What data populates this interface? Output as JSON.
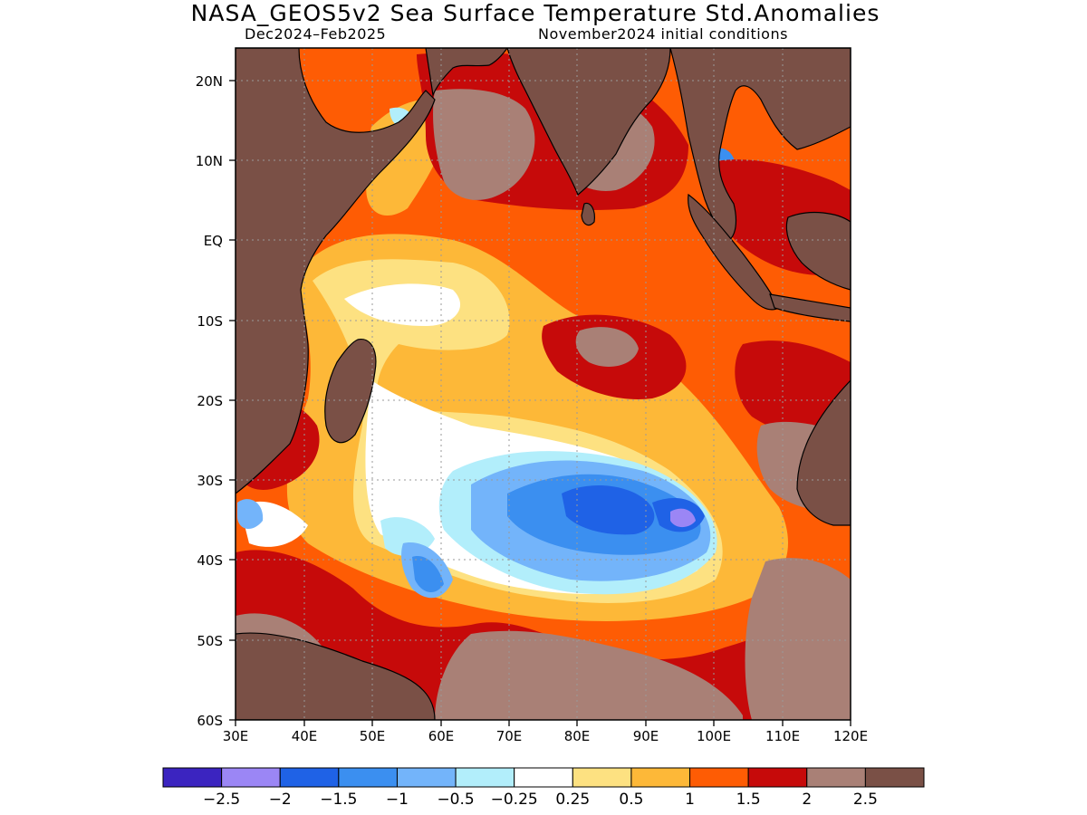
{
  "header": {
    "title": "NASA_GEOS5v2 Sea Surface Temperature Std.Anomalies",
    "period": "Dec2024–Feb2025",
    "init": "November2024 initial conditions"
  },
  "map": {
    "lon_range": [
      30,
      120
    ],
    "lat_range": [
      -60,
      24
    ],
    "lon_ticks": [
      "30E",
      "40E",
      "50E",
      "60E",
      "70E",
      "80E",
      "90E",
      "100E",
      "110E",
      "120E"
    ],
    "lat_ticks": [
      "20N",
      "10N",
      "EQ",
      "10S",
      "20S",
      "30S",
      "40S",
      "50S",
      "60S"
    ],
    "land_color": "#7a5046"
  },
  "colorbar": {
    "colors": [
      "#3b24c0",
      "#9b86f5",
      "#1f62e6",
      "#3b8ff0",
      "#73b4fa",
      "#b2eefb",
      "#ffffff",
      "#fde181",
      "#fdb838",
      "#fe5c04",
      "#c60a0a",
      "#a98076",
      "#7a5046"
    ],
    "labels": [
      "−2.5",
      "−2",
      "−1.5",
      "−1",
      "−0.5",
      "−0.25",
      "0.25",
      "0.5",
      "1",
      "1.5",
      "2",
      "2.5"
    ]
  }
}
